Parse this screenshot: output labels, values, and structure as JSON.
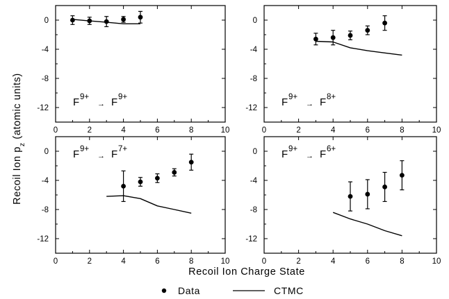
{
  "figure": {
    "xlabel": "Recoil Ion Charge State",
    "ylabel_main": "Recoil Ion p",
    "ylabel_sub": "z",
    "ylabel_tail": " (atomic units)"
  },
  "legend": [
    {
      "name": "Data",
      "marker": "dot"
    },
    {
      "name": "CTMC",
      "marker": "line"
    }
  ],
  "chart_data": [
    {
      "type": "scatter",
      "annotation": {
        "base": "F",
        "sup1": "9+",
        "arrow": "→",
        "sup2": "9+"
      },
      "xlim": [
        0,
        10
      ],
      "ylim": [
        -14,
        2
      ],
      "xticks": [
        0,
        2,
        4,
        6,
        8,
        10
      ],
      "yticks": [
        0,
        -4,
        -8,
        -12
      ],
      "series": [
        {
          "name": "Data",
          "x": [
            1,
            2,
            3,
            4,
            5
          ],
          "y": [
            0,
            -0.1,
            -0.2,
            0.1,
            0.4
          ],
          "yerr": [
            0.6,
            0.5,
            0.7,
            0.4,
            0.8
          ]
        },
        {
          "name": "CTMC",
          "x": [
            1,
            2,
            3,
            4,
            5
          ],
          "y": [
            0.1,
            -0.1,
            -0.3,
            -0.5,
            -0.5
          ]
        }
      ]
    },
    {
      "type": "scatter",
      "annotation": {
        "base": "F",
        "sup1": "9+",
        "arrow": "→",
        "sup2": "8+"
      },
      "xlim": [
        0,
        10
      ],
      "ylim": [
        -14,
        2
      ],
      "xticks": [
        0,
        2,
        4,
        6,
        8,
        10
      ],
      "yticks": [
        0,
        -4,
        -8,
        -12
      ],
      "series": [
        {
          "name": "Data",
          "x": [
            3,
            4,
            5,
            6,
            7
          ],
          "y": [
            -2.6,
            -2.4,
            -2.1,
            -1.4,
            -0.4
          ],
          "yerr": [
            0.8,
            1.0,
            0.6,
            0.6,
            1.0
          ]
        },
        {
          "name": "CTMC",
          "x": [
            3,
            4,
            5,
            6,
            7,
            8
          ],
          "y": [
            -2.9,
            -3.0,
            -3.8,
            -4.2,
            -4.5,
            -4.8
          ]
        }
      ]
    },
    {
      "type": "scatter",
      "annotation": {
        "base": "F",
        "sup1": "9+",
        "arrow": "→",
        "sup2": "7+"
      },
      "xlim": [
        0,
        10
      ],
      "ylim": [
        -14,
        2
      ],
      "xticks": [
        0,
        2,
        4,
        6,
        8,
        10
      ],
      "yticks": [
        0,
        -4,
        -8,
        -12
      ],
      "series": [
        {
          "name": "Data",
          "x": [
            4,
            5,
            6,
            7,
            8
          ],
          "y": [
            -4.8,
            -4.2,
            -3.7,
            -2.9,
            -1.5
          ],
          "yerr": [
            2.1,
            0.6,
            0.6,
            0.5,
            1.1
          ]
        },
        {
          "name": "CTMC",
          "x": [
            3,
            4,
            5,
            6,
            7,
            8
          ],
          "y": [
            -6.2,
            -6.1,
            -6.5,
            -7.5,
            -8.0,
            -8.5
          ]
        }
      ]
    },
    {
      "type": "scatter",
      "annotation": {
        "base": "F",
        "sup1": "9+",
        "arrow": "→",
        "sup2": "6+"
      },
      "xlim": [
        0,
        10
      ],
      "ylim": [
        -14,
        2
      ],
      "xticks": [
        0,
        2,
        4,
        6,
        8,
        10
      ],
      "yticks": [
        0,
        -4,
        -8,
        -12
      ],
      "series": [
        {
          "name": "Data",
          "x": [
            5,
            6,
            7,
            8
          ],
          "y": [
            -6.2,
            -5.9,
            -4.9,
            -3.3
          ],
          "yerr": [
            2.0,
            2.0,
            2.0,
            2.0
          ]
        },
        {
          "name": "CTMC",
          "x": [
            4,
            5,
            6,
            7,
            8
          ],
          "y": [
            -8.4,
            -9.3,
            -10.0,
            -10.9,
            -11.6
          ]
        }
      ]
    }
  ]
}
